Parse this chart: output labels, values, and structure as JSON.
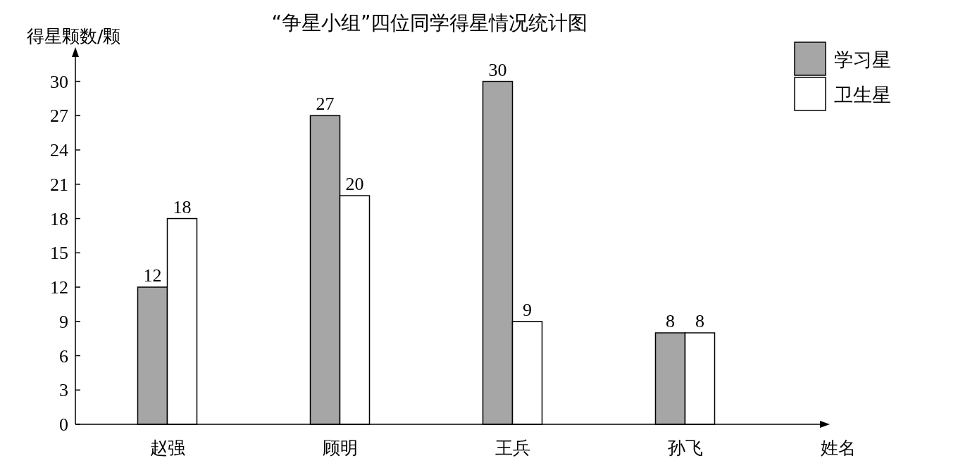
{
  "chart_data": {
    "type": "bar",
    "title": "“争星小组”四位同学得星情况统计图",
    "xlabel": "姓名",
    "ylabel": "得星颗数/颗",
    "categories": [
      "赵强",
      "顾明",
      "王兵",
      "孙飞"
    ],
    "series": [
      {
        "name": "学习星",
        "color": "#a6a6a6",
        "values": [
          12,
          27,
          30,
          8
        ]
      },
      {
        "name": "卫生星",
        "color": "#ffffff",
        "values": [
          18,
          20,
          9,
          8
        ]
      }
    ],
    "ylim": [
      0,
      32.5
    ],
    "yticks": [
      0,
      3,
      6,
      9,
      12,
      15,
      18,
      21,
      24,
      27,
      30
    ],
    "data_labels": true,
    "legend": "top right",
    "grid": false
  }
}
